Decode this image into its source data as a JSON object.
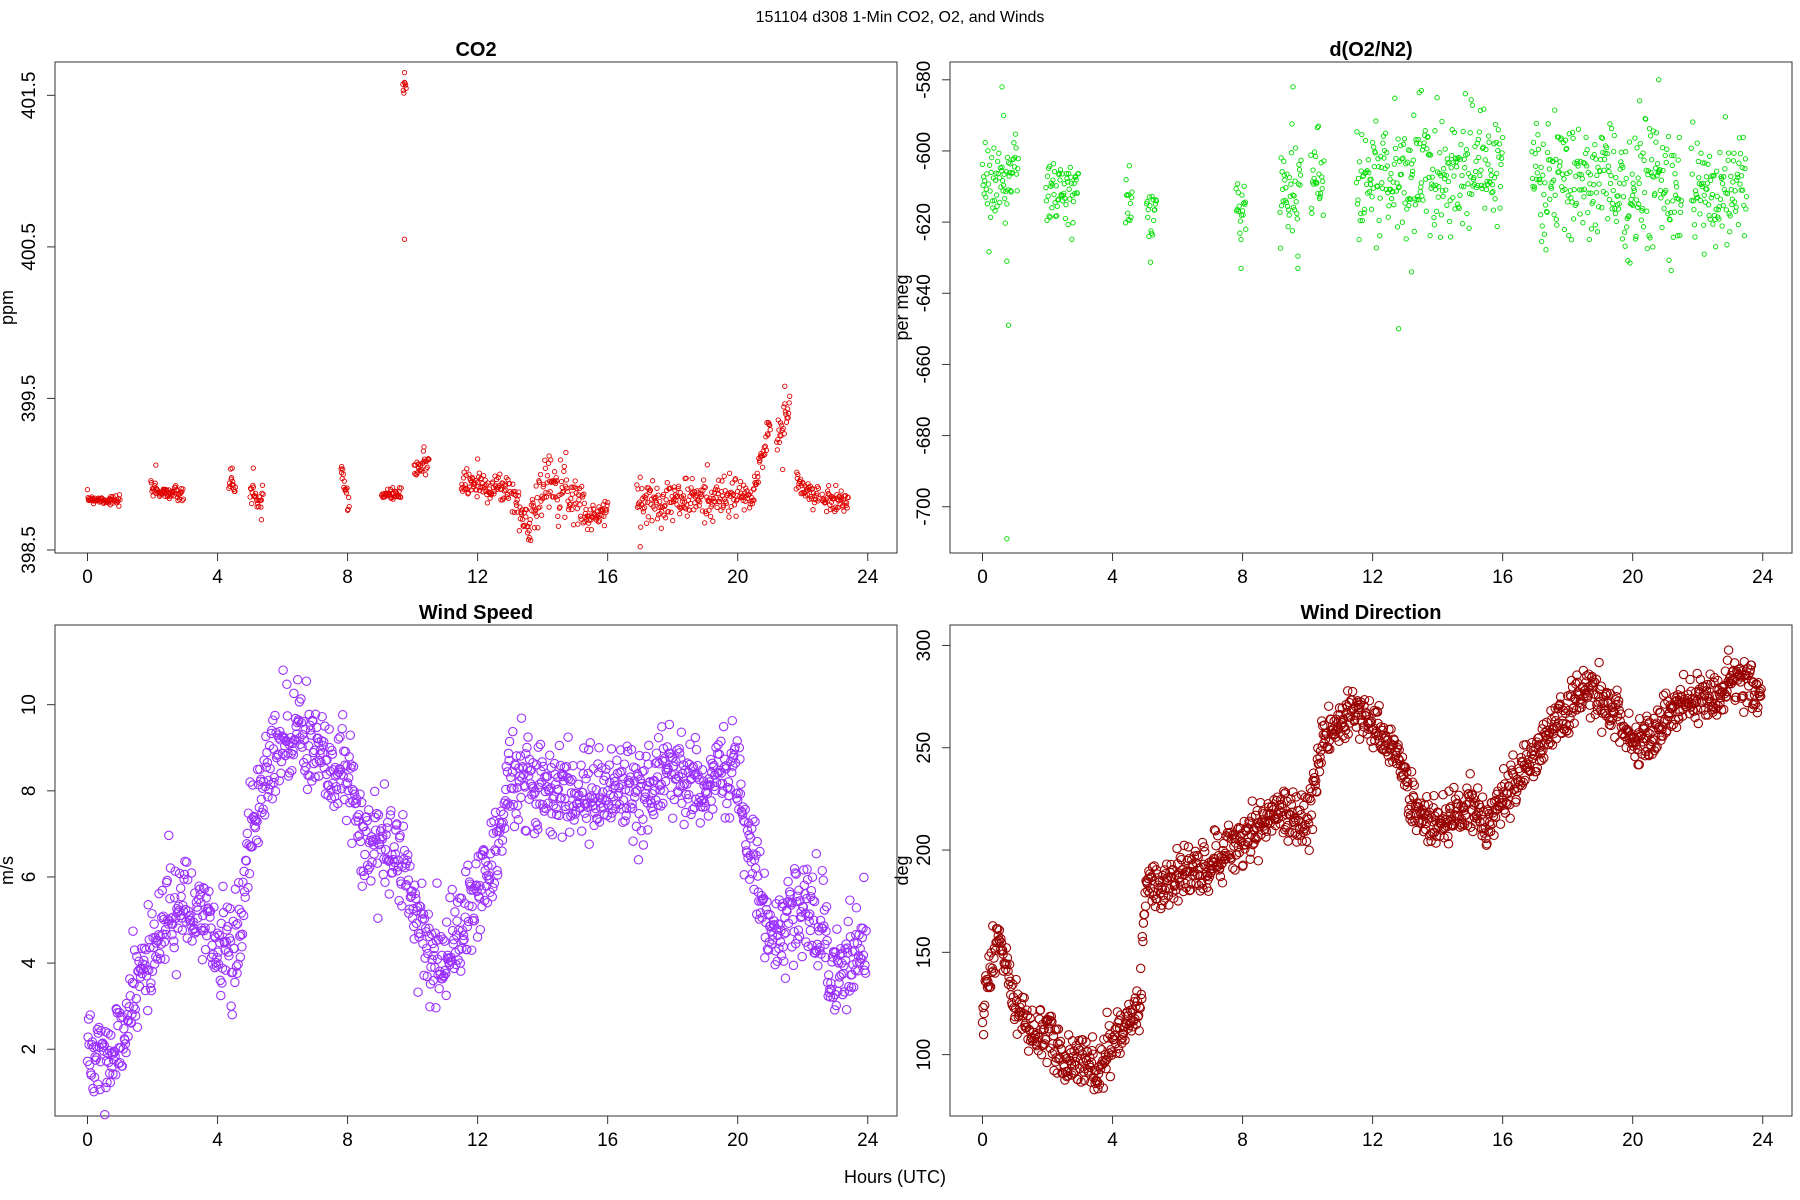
{
  "figure": {
    "suptitle": "151104   d308   1-Min CO2, O2, and Winds",
    "xlabel": "Hours (UTC)"
  },
  "chart_data": [
    {
      "id": "co2",
      "type": "scatter",
      "title": "CO2",
      "xlabel": "",
      "ylabel": "ppm",
      "xlim": [
        -1,
        24.9
      ],
      "ylim": [
        398.48,
        401.72
      ],
      "xticks": [
        0,
        4,
        8,
        12,
        16,
        20,
        24
      ],
      "yticks": [
        398.5,
        399.5,
        400.5,
        401.5
      ],
      "color": "#e00000",
      "marker": "circle-small",
      "segments": [
        {
          "start": 0.0,
          "end": 1.0,
          "y0": 398.84,
          "y1": 398.82,
          "noise": 0.015,
          "spikes": []
        },
        {
          "start": 1.95,
          "end": 2.95,
          "y0": 398.9,
          "y1": 398.86,
          "noise": 0.025,
          "spikes": [
            {
              "x": 2.1,
              "y": 399.06
            }
          ]
        },
        {
          "start": 4.35,
          "end": 4.55,
          "y0": 398.94,
          "y1": 398.92,
          "noise": 0.03,
          "spikes": [
            {
              "x": 4.45,
              "y": 399.04
            }
          ]
        },
        {
          "start": 5.0,
          "end": 5.4,
          "y0": 398.88,
          "y1": 398.8,
          "noise": 0.05,
          "spikes": [
            {
              "x": 5.1,
              "y": 399.04
            },
            {
              "x": 5.35,
              "y": 398.7
            }
          ]
        },
        {
          "start": 7.8,
          "end": 8.05,
          "y0": 399.0,
          "y1": 398.82,
          "noise": 0.05,
          "spikes": [
            {
              "x": 7.82,
              "y": 399.05
            }
          ]
        },
        {
          "start": 9.05,
          "end": 9.65,
          "y0": 398.86,
          "y1": 398.87,
          "noise": 0.02,
          "spikes": []
        },
        {
          "start": 9.7,
          "end": 9.8,
          "y0": 401.5,
          "y1": 401.58,
          "noise": 0.04,
          "spikes": [
            {
              "x": 9.75,
              "y": 400.55
            },
            {
              "x": 9.75,
              "y": 401.65
            }
          ]
        },
        {
          "start": 10.05,
          "end": 10.5,
          "y0": 399.0,
          "y1": 399.1,
          "noise": 0.05,
          "spikes": [
            {
              "x": 10.35,
              "y": 399.18
            }
          ]
        },
        {
          "start": 11.5,
          "end": 13.0,
          "y0": 398.95,
          "y1": 398.9,
          "noise": 0.05,
          "spikes": [
            {
              "x": 12.0,
              "y": 399.1
            }
          ]
        },
        {
          "start": 13.05,
          "end": 13.6,
          "y0": 398.88,
          "y1": 398.62,
          "noise": 0.06,
          "spikes": []
        },
        {
          "start": 13.6,
          "end": 14.4,
          "y0": 398.75,
          "y1": 399.0,
          "noise": 0.08,
          "spikes": [
            {
              "x": 14.2,
              "y": 399.12
            }
          ]
        },
        {
          "start": 14.4,
          "end": 15.3,
          "y0": 398.95,
          "y1": 398.8,
          "noise": 0.08,
          "spikes": []
        },
        {
          "start": 15.3,
          "end": 16.0,
          "y0": 398.7,
          "y1": 398.76,
          "noise": 0.04,
          "spikes": []
        },
        {
          "start": 16.9,
          "end": 20.0,
          "y0": 398.82,
          "y1": 398.85,
          "noise": 0.07,
          "spikes": [
            {
              "x": 17.0,
              "y": 398.98
            }
          ]
        },
        {
          "start": 20.05,
          "end": 20.5,
          "y0": 398.88,
          "y1": 398.82,
          "noise": 0.04,
          "spikes": []
        },
        {
          "start": 20.5,
          "end": 21.0,
          "y0": 398.9,
          "y1": 399.35,
          "noise": 0.05,
          "spikes": []
        },
        {
          "start": 21.2,
          "end": 21.6,
          "y0": 399.2,
          "y1": 399.45,
          "noise": 0.07,
          "spikes": [
            {
              "x": 21.45,
              "y": 399.58
            }
          ]
        },
        {
          "start": 21.8,
          "end": 22.5,
          "y0": 398.95,
          "y1": 398.82,
          "noise": 0.05,
          "spikes": []
        },
        {
          "start": 22.6,
          "end": 23.4,
          "y0": 398.85,
          "y1": 398.82,
          "noise": 0.04,
          "spikes": []
        }
      ]
    },
    {
      "id": "o2",
      "type": "scatter",
      "title": "d(O2/N2)",
      "xlabel": "",
      "ylabel": "per meg",
      "xlim": [
        -1,
        24.9
      ],
      "ylim": [
        -713,
        -575
      ],
      "xticks": [
        0,
        4,
        8,
        12,
        16,
        20,
        24
      ],
      "yticks": [
        -700,
        -680,
        -660,
        -640,
        -620,
        -600,
        -580
      ],
      "color": "#00dd00",
      "marker": "circle-small",
      "segments": [
        {
          "start": 0.0,
          "end": 1.1,
          "y0": -610,
          "y1": -606,
          "noise": 6,
          "spikes": [
            {
              "x": 0.6,
              "y": -582
            },
            {
              "x": 0.65,
              "y": -590
            },
            {
              "x": 0.75,
              "y": -631
            },
            {
              "x": 0.8,
              "y": -649
            },
            {
              "x": 0.75,
              "y": -709
            }
          ]
        },
        {
          "start": 1.95,
          "end": 2.95,
          "y0": -611,
          "y1": -613,
          "noise": 5,
          "spikes": []
        },
        {
          "start": 4.4,
          "end": 4.6,
          "y0": -613,
          "y1": -617,
          "noise": 5,
          "spikes": []
        },
        {
          "start": 5.05,
          "end": 5.35,
          "y0": -615,
          "y1": -620,
          "noise": 6,
          "spikes": []
        },
        {
          "start": 7.8,
          "end": 8.1,
          "y0": -614,
          "y1": -618,
          "noise": 6,
          "spikes": [
            {
              "x": 7.95,
              "y": -633
            }
          ]
        },
        {
          "start": 9.15,
          "end": 9.8,
          "y0": -612,
          "y1": -608,
          "noise": 8,
          "spikes": [
            {
              "x": 9.55,
              "y": -582
            },
            {
              "x": 9.7,
              "y": -633
            }
          ]
        },
        {
          "start": 10.1,
          "end": 10.5,
          "y0": -608,
          "y1": -606,
          "noise": 6,
          "spikes": []
        },
        {
          "start": 11.5,
          "end": 16.0,
          "y0": -608,
          "y1": -604,
          "noise": 8,
          "spikes": [
            {
              "x": 12.8,
              "y": -650
            },
            {
              "x": 13.2,
              "y": -634
            },
            {
              "x": 13.5,
              "y": -583
            }
          ]
        },
        {
          "start": 16.9,
          "end": 20.0,
          "y0": -608,
          "y1": -610,
          "noise": 8,
          "spikes": []
        },
        {
          "start": 20.0,
          "end": 21.5,
          "y0": -608,
          "y1": -612,
          "noise": 10,
          "spikes": [
            {
              "x": 20.8,
              "y": -580
            }
          ]
        },
        {
          "start": 21.8,
          "end": 23.5,
          "y0": -610,
          "y1": -611,
          "noise": 7,
          "spikes": [
            {
              "x": 22.2,
              "y": -629
            }
          ]
        }
      ]
    },
    {
      "id": "wind_speed",
      "type": "scatter",
      "title": "Wind Speed",
      "xlabel": "",
      "ylabel": "m/s",
      "xlim": [
        -1,
        24.9
      ],
      "ylim": [
        0.45,
        11.85
      ],
      "xticks": [
        0,
        4,
        8,
        12,
        16,
        20,
        24
      ],
      "yticks": [
        2,
        4,
        6,
        8,
        10
      ],
      "color": "#9b30ff",
      "marker": "circle",
      "profile": [
        [
          0,
          1.9
        ],
        [
          0.7,
          1.6
        ],
        [
          1.0,
          2.2
        ],
        [
          1.5,
          3.5
        ],
        [
          2.0,
          4.2
        ],
        [
          2.5,
          5.3
        ],
        [
          3.0,
          5.2
        ],
        [
          3.5,
          4.9
        ],
        [
          4.0,
          4.5
        ],
        [
          4.5,
          4.4
        ],
        [
          4.8,
          5.0
        ],
        [
          5.0,
          7.0
        ],
        [
          5.5,
          8.5
        ],
        [
          6.0,
          9.3
        ],
        [
          6.5,
          9.6
        ],
        [
          7.0,
          8.9
        ],
        [
          7.5,
          8.3
        ],
        [
          8.0,
          8.4
        ],
        [
          8.5,
          7.0
        ],
        [
          9.0,
          6.6
        ],
        [
          9.5,
          6.6
        ],
        [
          10.0,
          5.5
        ],
        [
          10.5,
          4.2
        ],
        [
          11.0,
          4.3
        ],
        [
          11.5,
          4.6
        ],
        [
          12.0,
          5.8
        ],
        [
          12.5,
          6.5
        ],
        [
          13.0,
          8.3
        ],
        [
          14.0,
          8.1
        ],
        [
          15.0,
          7.9
        ],
        [
          16.0,
          8.0
        ],
        [
          17.0,
          7.8
        ],
        [
          18.0,
          8.5
        ],
        [
          19.0,
          8.1
        ],
        [
          20.0,
          8.5
        ],
        [
          20.5,
          6.5
        ],
        [
          21.0,
          4.6
        ],
        [
          21.5,
          4.9
        ],
        [
          22.0,
          5.5
        ],
        [
          22.5,
          4.9
        ],
        [
          23.0,
          3.7
        ],
        [
          23.5,
          4.3
        ],
        [
          24.0,
          4.4
        ]
      ],
      "noise": 0.55
    },
    {
      "id": "wind_direction",
      "type": "scatter",
      "title": "Wind Direction",
      "xlabel": "",
      "ylabel": "deg",
      "xlim": [
        -1,
        24.9
      ],
      "ylim": [
        70,
        310
      ],
      "xticks": [
        0,
        4,
        8,
        12,
        16,
        20,
        24
      ],
      "yticks": [
        100,
        150,
        200,
        250,
        300
      ],
      "color": "#990000",
      "marker": "circle",
      "profile": [
        [
          0,
          125
        ],
        [
          0.5,
          160
        ],
        [
          0.8,
          140
        ],
        [
          1.0,
          125
        ],
        [
          1.5,
          110
        ],
        [
          2.0,
          112
        ],
        [
          2.5,
          95
        ],
        [
          3.0,
          98
        ],
        [
          3.5,
          92
        ],
        [
          4.0,
          105
        ],
        [
          4.5,
          118
        ],
        [
          4.85,
          122
        ],
        [
          5.0,
          182
        ],
        [
          6.0,
          187
        ],
        [
          7.0,
          192
        ],
        [
          8.0,
          205
        ],
        [
          9.0,
          218
        ],
        [
          10.0,
          215
        ],
        [
          10.5,
          255
        ],
        [
          11.0,
          263
        ],
        [
          11.5,
          268
        ],
        [
          12.0,
          262
        ],
        [
          12.5,
          252
        ],
        [
          13.0,
          235
        ],
        [
          13.5,
          215
        ],
        [
          14.0,
          212
        ],
        [
          15.0,
          220
        ],
        [
          15.5,
          210
        ],
        [
          16.0,
          228
        ],
        [
          16.5,
          235
        ],
        [
          17.0,
          248
        ],
        [
          17.5,
          258
        ],
        [
          18.0,
          265
        ],
        [
          18.5,
          278
        ],
        [
          19.0,
          275
        ],
        [
          19.5,
          265
        ],
        [
          20.0,
          252
        ],
        [
          20.5,
          252
        ],
        [
          21.0,
          265
        ],
        [
          21.5,
          270
        ],
        [
          22.0,
          273
        ],
        [
          22.5,
          272
        ],
        [
          23.0,
          285
        ],
        [
          23.5,
          285
        ],
        [
          23.9,
          272
        ]
      ],
      "noise": 6
    }
  ]
}
